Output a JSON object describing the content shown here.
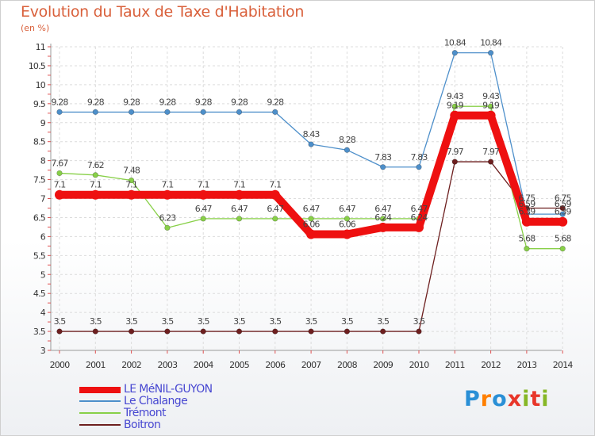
{
  "title": "Evolution du Taux de Taxe d'Habitation",
  "subtitle": "(en %)",
  "logo": {
    "text": "Proxiti",
    "colors": [
      "#2a8fd6",
      "#ff7f00",
      "#2a8fd6",
      "#e8362a",
      "#86b726",
      "#e8362a",
      "#86b726"
    ]
  },
  "chart_data": {
    "type": "line",
    "x": [
      2000,
      2001,
      2002,
      2003,
      2004,
      2005,
      2006,
      2007,
      2008,
      2009,
      2010,
      2011,
      2012,
      2013,
      2014
    ],
    "ylim": [
      3,
      11
    ],
    "yticks": [
      3,
      3.5,
      4,
      4.5,
      5,
      5.5,
      6,
      6.5,
      7,
      7.5,
      8,
      8.5,
      9,
      9.5,
      10,
      10.5,
      11
    ],
    "ytick_labels": [
      "3",
      "3.5",
      "4",
      "4.5",
      "5",
      "5.5",
      "6",
      "6.5",
      "7",
      "7.5",
      "8",
      "8.5",
      "9",
      "9.5",
      "10",
      "10.5",
      "11"
    ],
    "grid": true,
    "legend_position": "bottom-left",
    "series": [
      {
        "name": "LE MéNIL-GUYON",
        "color": "#ee1010",
        "values": [
          7.1,
          7.1,
          7.1,
          7.1,
          7.1,
          7.1,
          7.1,
          6.06,
          6.06,
          6.24,
          6.24,
          9.19,
          9.19,
          6.39,
          6.39
        ],
        "labels": [
          "7.1",
          "7.1",
          "7.1",
          "7.1",
          "7.1",
          "7.1",
          "7.1",
          "6.06",
          "6.06",
          "6.24",
          "6.24",
          "9.19",
          "9.19",
          "6.39",
          "6.39"
        ]
      },
      {
        "name": "Le Chalange",
        "color": "#4d8fca",
        "values": [
          9.28,
          9.28,
          9.28,
          9.28,
          9.28,
          9.28,
          9.28,
          8.43,
          8.28,
          7.83,
          7.83,
          10.84,
          10.84,
          6.59,
          6.59
        ],
        "labels": [
          "9.28",
          "9.28",
          "9.28",
          "9.28",
          "9.28",
          "9.28",
          "9.28",
          "8.43",
          "8.28",
          "7.83",
          "7.83",
          "10.84",
          "10.84",
          "6.59",
          "6.59"
        ]
      },
      {
        "name": "Trémont",
        "color": "#88d048",
        "values": [
          7.67,
          7.62,
          7.48,
          6.23,
          6.47,
          6.47,
          6.47,
          6.47,
          6.47,
          6.47,
          6.47,
          9.43,
          9.43,
          5.68,
          5.68
        ],
        "labels": [
          "7.67",
          "7.62",
          "7.48",
          "6.23",
          "6.47",
          "6.47",
          "6.47",
          "6.47",
          "6.47",
          "6.47",
          "6.47",
          "9.43",
          "9.43",
          "5.68",
          "5.68"
        ]
      },
      {
        "name": "Boitron",
        "color": "#6d1f1f",
        "values": [
          3.5,
          3.5,
          3.5,
          3.5,
          3.5,
          3.5,
          3.5,
          3.5,
          3.5,
          3.5,
          3.5,
          7.97,
          7.97,
          6.75,
          6.75
        ],
        "labels": [
          "3.5",
          "3.5",
          "3.5",
          "3.5",
          "3.5",
          "3.5",
          "3.5",
          "3.5",
          "3.5",
          "3.5",
          "3.5",
          "7.97",
          "7.97",
          "6.75",
          "6.75"
        ]
      }
    ]
  }
}
